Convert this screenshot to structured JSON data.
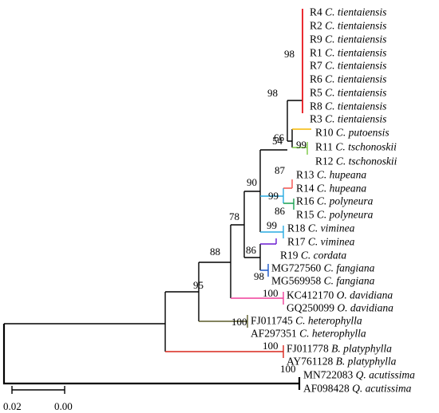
{
  "leaves": [
    {
      "id": "R4",
      "sp": "C. tientaiensis"
    },
    {
      "id": "R2",
      "sp": "C. tientaiensis"
    },
    {
      "id": "R9",
      "sp": "C. tientaiensis"
    },
    {
      "id": "R1",
      "sp": "C. tientaiensis"
    },
    {
      "id": "R7",
      "sp": "C. tientaiensis"
    },
    {
      "id": "R6",
      "sp": "C. tientaiensis"
    },
    {
      "id": "R5",
      "sp": "C. tientaiensis"
    },
    {
      "id": "R8",
      "sp": "C. tientaiensis"
    },
    {
      "id": "R3",
      "sp": "C. tientaiensis"
    },
    {
      "id": "R10",
      "sp": "C. putoensis"
    },
    {
      "id": "R11",
      "sp": "C. tschonoskii"
    },
    {
      "id": "R12",
      "sp": "C. tschonoskii"
    },
    {
      "id": "R13",
      "sp": "C. hupeana"
    },
    {
      "id": "R14",
      "sp": "C. hupeana"
    },
    {
      "id": "R16",
      "sp": "C. polyneura"
    },
    {
      "id": "R15",
      "sp": "C. polyneura"
    },
    {
      "id": "R18",
      "sp": "C. viminea"
    },
    {
      "id": "R17",
      "sp": "C. viminea"
    },
    {
      "id": "R19",
      "sp": "C. cordata"
    },
    {
      "id": "MG727560",
      "sp": "C. fangiana"
    },
    {
      "id": "MG569958",
      "sp": "C. fangiana"
    },
    {
      "id": "KC412170",
      "sp": "O. davidiana"
    },
    {
      "id": "GQ250099",
      "sp": "O. davidiana"
    },
    {
      "id": "FJ011745",
      "sp": "C. heterophylla"
    },
    {
      "id": "AF297351",
      "sp": "C. heterophylla"
    },
    {
      "id": "FJ011778",
      "sp": "B. platyphylla"
    },
    {
      "id": "AY761128",
      "sp": "B. platyphylla"
    },
    {
      "id": "MN722083",
      "sp": "Q. acutissima"
    },
    {
      "id": "AF098428",
      "sp": "Q. acutissima"
    }
  ],
  "bootstrap": [
    "98",
    "98",
    "66",
    "99",
    "54",
    "87",
    "99",
    "86",
    "90",
    "99",
    "78",
    "86",
    "98",
    "88",
    "100",
    "95",
    "100",
    "100",
    "100"
  ],
  "scale": {
    "left_label": "0.02",
    "right_label": "0.00"
  },
  "colors": {
    "tientaiensis": "#e8141b",
    "putoensis": "#f5b800",
    "tschonoskii": "#7ac943",
    "hupeana": "#f4514c",
    "polyneura": "#19a050",
    "viminea": "#29abe2",
    "cordata": "#6a1bd1",
    "fangiana": "#1a56c8",
    "davidiana": "#ef3f9a",
    "heterophylla": "#5a5a2a",
    "platyphylla": "#d9261c",
    "backbone": "#000000"
  }
}
